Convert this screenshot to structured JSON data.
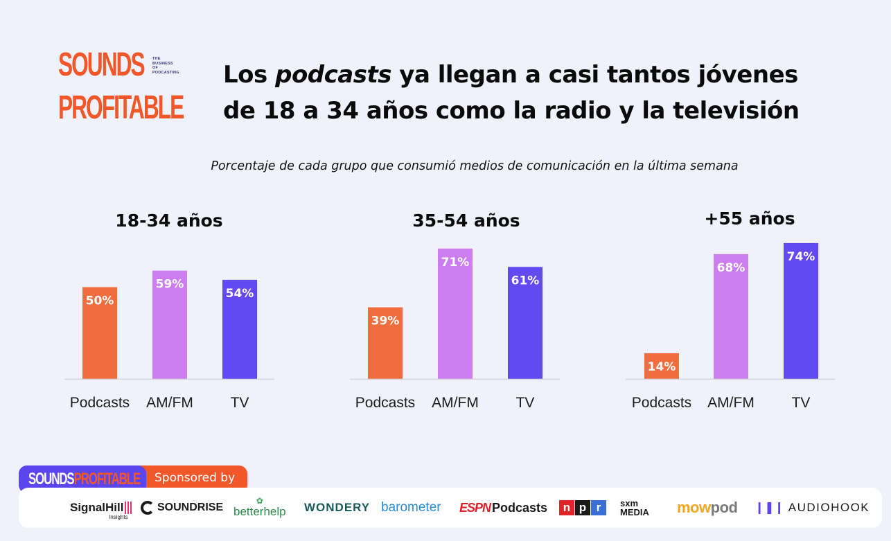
{
  "logo": {
    "line1": "SOUNDS",
    "line2": "PROFITABLE",
    "tagline": [
      "THE",
      "BUSINESS",
      "OF",
      "PODCASTING"
    ]
  },
  "title": {
    "part1": "Los ",
    "italic": "podcasts",
    "part2": " ya llegan a casi tantos jóvenes",
    "line2": "de 18 a 34 años como la radio y la televisión"
  },
  "subtitle": "Porcentaje de cada grupo que consumió medios de comunicación en la última semana",
  "colors": {
    "podcasts": "#f26d3d",
    "amfm": "#cc7ef0",
    "tv": "#6249f0",
    "axis": "#d4d4dc"
  },
  "chart_data": [
    {
      "type": "bar",
      "title": "18-34 años",
      "categories": [
        "Podcasts",
        "AM/FM",
        "TV"
      ],
      "values": [
        50,
        59,
        54
      ],
      "data_labels": [
        "50%",
        "59%",
        "54%"
      ],
      "unit": "%",
      "ylim": [
        0,
        80
      ]
    },
    {
      "type": "bar",
      "title": "35-54 años",
      "categories": [
        "Podcasts",
        "AM/FM",
        "TV"
      ],
      "values": [
        39,
        71,
        61
      ],
      "data_labels": [
        "39%",
        "71%",
        "61%"
      ],
      "unit": "%",
      "ylim": [
        0,
        80
      ]
    },
    {
      "type": "bar",
      "title": "+55 años",
      "categories": [
        "Podcasts",
        "AM/FM",
        "TV"
      ],
      "values": [
        14,
        68,
        74
      ],
      "data_labels": [
        "14%",
        "68%",
        "74%"
      ],
      "unit": "%",
      "ylim": [
        0,
        80
      ]
    }
  ],
  "sponsor": {
    "brand_part1": "SOUNDS",
    "brand_part2": "PROFITABLE",
    "label": "Sponsored by",
    "logos": {
      "signalhill": "SignalHill",
      "signalhill_sub": "Insights",
      "soundrise": "SOUNDRISE",
      "betterhelp": "betterhelp",
      "wondery": "WONDERY",
      "barometer": "barometer",
      "espn_a": "ESPN",
      "espn_b": "Podcasts",
      "npr": [
        "n",
        "p",
        "r"
      ],
      "sxm_a": "sxm",
      "sxm_b": "MEDIA",
      "mowpod_a": "mow",
      "mowpod_b": "pod",
      "audiohook": "AUDIOHOOK"
    }
  }
}
